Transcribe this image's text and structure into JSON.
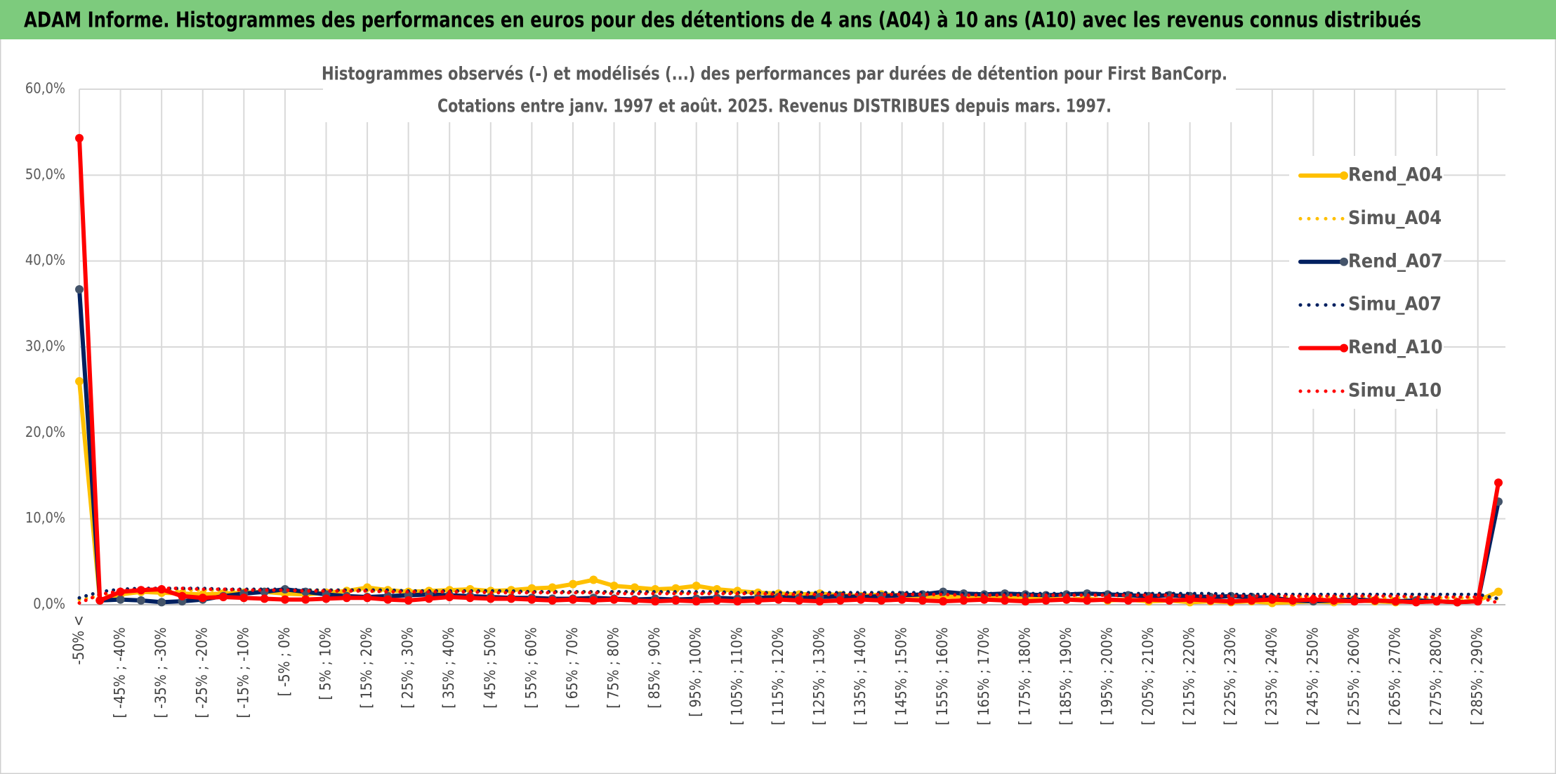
{
  "chart_data": {
    "type": "line",
    "title": "ADAM Informe. Histogrammes des performances en euros pour des détentions de 4 ans (A04) à 10 ans (A10) avec les revenus connus distribués",
    "subtitle": [
      "Histogrammes observés (-) et modélisés (...) des performances par durées de détention pour First BanCorp.",
      "Cotations entre janv. 1997 et août. 2025. Revenus DISTRIBUES depuis mars. 1997."
    ],
    "categories": [
      "-50% <",
      null,
      "[ -45% ; -40%",
      null,
      "[ -35% ; -30%",
      null,
      "[ -25% ; -20%",
      null,
      "[ -15% ; -10%",
      null,
      "[ -5% ; 0%",
      null,
      "[ 5% ; 10%",
      null,
      "[ 15% ; 20%",
      null,
      "[ 25% ; 30%",
      null,
      "[ 35% ; 40%",
      null,
      "[ 45% ; 50%",
      null,
      "[ 55% ; 60%",
      null,
      "[ 65% ; 70%",
      null,
      "[ 75% ; 80%",
      null,
      "[ 85% ; 90%",
      null,
      "[ 95% ; 100%",
      null,
      "[ 105% ; 110%",
      null,
      "[ 115% ; 120%",
      null,
      "[ 125% ; 130%",
      null,
      "[ 135% ; 140%",
      null,
      "[ 145% ; 150%",
      null,
      "[ 155% ; 160%",
      null,
      "[ 165% ; 170%",
      null,
      "[ 175% ; 180%",
      null,
      "[ 185% ; 190%",
      null,
      "[ 195% ; 200%",
      null,
      "[ 205% ; 210%",
      null,
      "[ 215% ; 220%",
      null,
      "[ 225% ; 230%",
      null,
      "[ 235% ; 240%",
      null,
      "[ 245% ; 250%",
      null,
      "[ 255% ; 260%",
      null,
      "[ 265% ; 270%",
      null,
      "[ 275% ; 280%",
      null,
      "[ 285% ; 290%",
      null
    ],
    "series": [
      {
        "name": "Rend_A04",
        "color": "#FFC000",
        "line_style": "solid",
        "values": [
          26,
          0.5,
          1.2,
          1.5,
          1.4,
          1.3,
          1.2,
          1.3,
          1.4,
          1.5,
          1.3,
          1.2,
          1.4,
          1.6,
          2.0,
          1.7,
          1.5,
          1.6,
          1.7,
          1.8,
          1.6,
          1.7,
          1.9,
          2.0,
          2.4,
          2.9,
          2.2,
          2.0,
          1.8,
          1.9,
          2.2,
          1.8,
          1.6,
          1.4,
          1.3,
          1.2,
          1.3,
          1.1,
          1.0,
          1.2,
          1.1,
          1.0,
          0.9,
          1.0,
          0.8,
          0.9,
          0.8,
          0.7,
          0.6,
          0.7,
          0.5,
          0.6,
          0.4,
          0.5,
          0.3,
          0.4,
          0.3,
          0.4,
          0.2,
          0.3,
          0.4,
          0.3,
          0.5,
          0.4,
          0.3,
          0.5,
          0.4,
          0.3,
          0.5,
          1.5
        ]
      },
      {
        "name": "Simu_A04",
        "color": "#FFC000",
        "line_style": "dotted",
        "values": [
          0.6,
          1.0,
          1.3,
          1.5,
          1.6,
          1.7,
          1.7,
          1.7,
          1.7,
          1.7,
          1.7,
          1.7,
          1.7,
          1.7,
          1.6,
          1.6,
          1.6,
          1.6,
          1.6,
          1.6,
          1.6,
          1.6,
          1.5,
          1.5,
          1.5,
          1.5,
          1.5,
          1.5,
          1.5,
          1.4,
          1.4,
          1.4,
          1.4,
          1.4,
          1.4,
          1.3,
          1.3,
          1.3,
          1.3,
          1.3,
          1.3,
          1.2,
          1.2,
          1.2,
          1.2,
          1.2,
          1.1,
          1.1,
          1.1,
          1.1,
          1.1,
          1.0,
          1.0,
          1.0,
          1.0,
          1.0,
          1.0,
          0.9,
          0.9,
          0.9,
          0.9,
          0.9,
          0.9,
          0.8,
          0.8,
          0.8,
          0.8,
          0.8,
          0.8,
          0.7
        ]
      },
      {
        "name": "Rend_A07",
        "color": "#002060",
        "line_style": "solid",
        "values": [
          36.7,
          0.5,
          0.6,
          0.5,
          0.3,
          0.4,
          0.6,
          1.0,
          1.3,
          1.5,
          1.8,
          1.5,
          1.2,
          1.0,
          0.9,
          1.0,
          1.1,
          1.2,
          1.1,
          1.0,
          0.9,
          0.8,
          0.8,
          0.7,
          0.7,
          0.8,
          0.7,
          0.6,
          0.7,
          0.6,
          0.7,
          0.8,
          0.7,
          0.8,
          0.9,
          0.8,
          0.9,
          1.0,
          0.9,
          1.0,
          1.1,
          1.2,
          1.5,
          1.3,
          1.2,
          1.3,
          1.2,
          1.1,
          1.2,
          1.3,
          1.2,
          1.1,
          1.0,
          1.1,
          1.0,
          0.9,
          1.0,
          0.9,
          0.8,
          0.5,
          0.4,
          0.5,
          0.6,
          0.5,
          0.4,
          0.5,
          0.4,
          0.3,
          0.4,
          12.0
        ]
      },
      {
        "name": "Simu_A07",
        "color": "#002060",
        "line_style": "dotted",
        "values": [
          0.8,
          1.5,
          1.8,
          1.9,
          1.9,
          1.9,
          1.9,
          1.8,
          1.8,
          1.8,
          1.8,
          1.7,
          1.7,
          1.7,
          1.7,
          1.7,
          1.6,
          1.6,
          1.6,
          1.6,
          1.6,
          1.6,
          1.5,
          1.5,
          1.5,
          1.5,
          1.5,
          1.5,
          1.5,
          1.5,
          1.5,
          1.5,
          1.4,
          1.4,
          1.4,
          1.4,
          1.4,
          1.4,
          1.4,
          1.4,
          1.4,
          1.4,
          1.4,
          1.3,
          1.3,
          1.3,
          1.3,
          1.3,
          1.3,
          1.3,
          1.3,
          1.3,
          1.3,
          1.3,
          1.3,
          1.3,
          1.2,
          1.2,
          1.2,
          1.2,
          1.2,
          1.2,
          1.2,
          1.2,
          1.2,
          1.2,
          1.2,
          1.2,
          1.2,
          0.7
        ]
      },
      {
        "name": "Rend_A10",
        "color": "#FF0000",
        "line_style": "solid",
        "values": [
          54.3,
          0.5,
          1.5,
          1.7,
          1.8,
          1.0,
          0.8,
          0.9,
          0.8,
          0.7,
          0.6,
          0.6,
          0.7,
          0.8,
          0.8,
          0.6,
          0.5,
          0.7,
          0.9,
          0.8,
          0.7,
          0.7,
          0.6,
          0.5,
          0.6,
          0.5,
          0.6,
          0.5,
          0.4,
          0.5,
          0.4,
          0.5,
          0.4,
          0.5,
          0.6,
          0.5,
          0.4,
          0.5,
          0.6,
          0.5,
          0.6,
          0.5,
          0.4,
          0.5,
          0.6,
          0.5,
          0.4,
          0.5,
          0.6,
          0.5,
          0.6,
          0.5,
          0.6,
          0.5,
          0.6,
          0.5,
          0.4,
          0.5,
          0.6,
          0.5,
          0.6,
          0.5,
          0.4,
          0.5,
          0.4,
          0.3,
          0.4,
          0.3,
          0.4,
          14.2
        ]
      },
      {
        "name": "Simu_A10",
        "color": "#FF0000",
        "line_style": "dotted",
        "values": [
          0.2,
          1.2,
          1.6,
          1.8,
          1.9,
          1.9,
          1.8,
          1.8,
          1.7,
          1.7,
          1.7,
          1.6,
          1.6,
          1.6,
          1.6,
          1.5,
          1.5,
          1.5,
          1.5,
          1.5,
          1.4,
          1.4,
          1.4,
          1.4,
          1.4,
          1.4,
          1.3,
          1.3,
          1.3,
          1.3,
          1.3,
          1.3,
          1.3,
          1.3,
          1.2,
          1.2,
          1.2,
          1.2,
          1.2,
          1.2,
          1.2,
          1.2,
          1.2,
          1.1,
          1.1,
          1.1,
          1.1,
          1.1,
          1.1,
          1.1,
          1.1,
          1.1,
          1.1,
          1.1,
          1.0,
          1.0,
          1.0,
          1.0,
          1.0,
          1.0,
          1.0,
          1.0,
          1.0,
          1.0,
          1.0,
          0.9,
          0.9,
          0.9,
          0.9,
          0.2
        ]
      }
    ],
    "ylim": [
      0,
      60
    ],
    "yticks": [
      {
        "value": 0,
        "label": "0,0%"
      },
      {
        "value": 10,
        "label": "10,0%"
      },
      {
        "value": 20,
        "label": "20,0%"
      },
      {
        "value": 30,
        "label": "30,0%"
      },
      {
        "value": 40,
        "label": "40,0%"
      },
      {
        "value": 50,
        "label": "50,0%"
      },
      {
        "value": 60,
        "label": "60,0%"
      }
    ],
    "grid": true,
    "legend": "right"
  }
}
